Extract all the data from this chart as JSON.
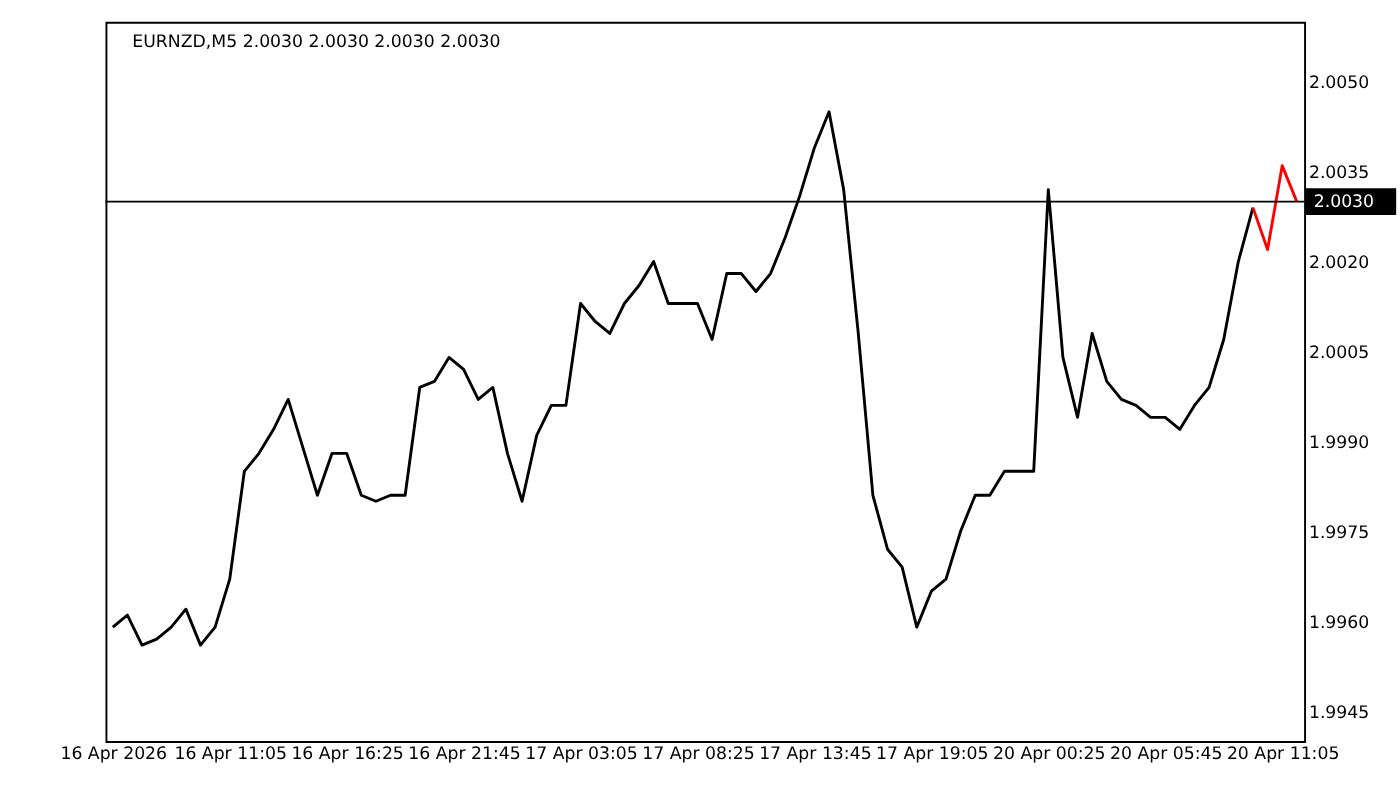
{
  "chart_data": {
    "type": "line",
    "title": "EURNZD,M5  2.0030 2.0030 2.0030 2.0030",
    "categories": [
      "16 Apr 2026",
      null,
      null,
      null,
      null,
      null,
      null,
      null,
      "16 Apr 11:05",
      null,
      null,
      null,
      null,
      null,
      null,
      null,
      "16 Apr 16:25",
      null,
      null,
      null,
      null,
      null,
      null,
      null,
      "16 Apr 21:45",
      null,
      null,
      null,
      null,
      null,
      null,
      null,
      "17 Apr 03:05",
      null,
      null,
      null,
      null,
      null,
      null,
      null,
      "17 Apr 08:25",
      null,
      null,
      null,
      null,
      null,
      null,
      null,
      "17 Apr 13:45",
      null,
      null,
      null,
      null,
      null,
      null,
      null,
      "17 Apr 19:05",
      null,
      null,
      null,
      null,
      null,
      null,
      null,
      "20 Apr 00:25",
      null,
      null,
      null,
      null,
      null,
      null,
      null,
      "20 Apr 05:45",
      null,
      null,
      null,
      null,
      null,
      null,
      null,
      "20 Apr 11:05",
      null
    ],
    "series": [
      {
        "color": "#000000",
        "values": [
          1.9959,
          1.9961,
          1.9956,
          1.9957,
          1.9959,
          1.9962,
          1.9956,
          1.9959,
          1.9967,
          1.9985,
          1.9988,
          1.9992,
          1.9997,
          1.9989,
          1.9981,
          1.9988,
          1.9988,
          1.9981,
          1.998,
          1.9981,
          1.9981,
          1.9999,
          2.0,
          2.0004,
          2.0002,
          1.9997,
          1.9999,
          1.9988,
          1.998,
          1.9991,
          1.9996,
          1.9996,
          2.0013,
          2.001,
          2.0008,
          2.0013,
          2.0016,
          2.002,
          2.0013,
          2.0013,
          2.0013,
          2.0007,
          2.0018,
          2.0018,
          2.0015,
          2.0018,
          2.0024,
          2.0031,
          2.0039,
          2.0045,
          2.0032,
          2.0008,
          1.9981,
          1.9972,
          1.9969,
          1.9959,
          1.9965,
          1.9967,
          1.9975,
          1.9981,
          1.9981,
          1.9985,
          1.9985,
          1.9985,
          2.0032,
          2.0004,
          1.9994,
          2.0008,
          2.0,
          1.9997,
          1.9996,
          1.9994,
          1.9994,
          1.9992,
          1.9996,
          1.9999,
          2.0007,
          2.002,
          2.0029,
          null,
          null,
          null
        ]
      },
      {
        "color": "#ff0000",
        "values": [
          null,
          null,
          null,
          null,
          null,
          null,
          null,
          null,
          null,
          null,
          null,
          null,
          null,
          null,
          null,
          null,
          null,
          null,
          null,
          null,
          null,
          null,
          null,
          null,
          null,
          null,
          null,
          null,
          null,
          null,
          null,
          null,
          null,
          null,
          null,
          null,
          null,
          null,
          null,
          null,
          null,
          null,
          null,
          null,
          null,
          null,
          null,
          null,
          null,
          null,
          null,
          null,
          null,
          null,
          null,
          null,
          null,
          null,
          null,
          null,
          null,
          null,
          null,
          null,
          null,
          null,
          null,
          null,
          null,
          null,
          null,
          null,
          null,
          null,
          null,
          null,
          null,
          null,
          2.0029,
          2.0022,
          2.0036,
          2.003
        ]
      }
    ],
    "ylim": [
      1.994,
      2.006
    ],
    "yticks": [
      {
        "value": 1.9945,
        "label": "1.9945"
      },
      {
        "value": 1.996,
        "label": "1.9960"
      },
      {
        "value": 1.9975,
        "label": "1.9975"
      },
      {
        "value": 1.999,
        "label": "1.9990"
      },
      {
        "value": 2.0005,
        "label": "2.0005"
      },
      {
        "value": 2.002,
        "label": "2.0020"
      },
      {
        "value": 2.0035,
        "label": "2.0035"
      },
      {
        "value": 2.005,
        "label": "2.0050"
      }
    ],
    "ref_lines": [
      {
        "axis": "y",
        "value": 2.003,
        "label": "2.0030",
        "color": "#000000"
      }
    ],
    "grid": false,
    "marker": "none",
    "line_style": "solid"
  }
}
